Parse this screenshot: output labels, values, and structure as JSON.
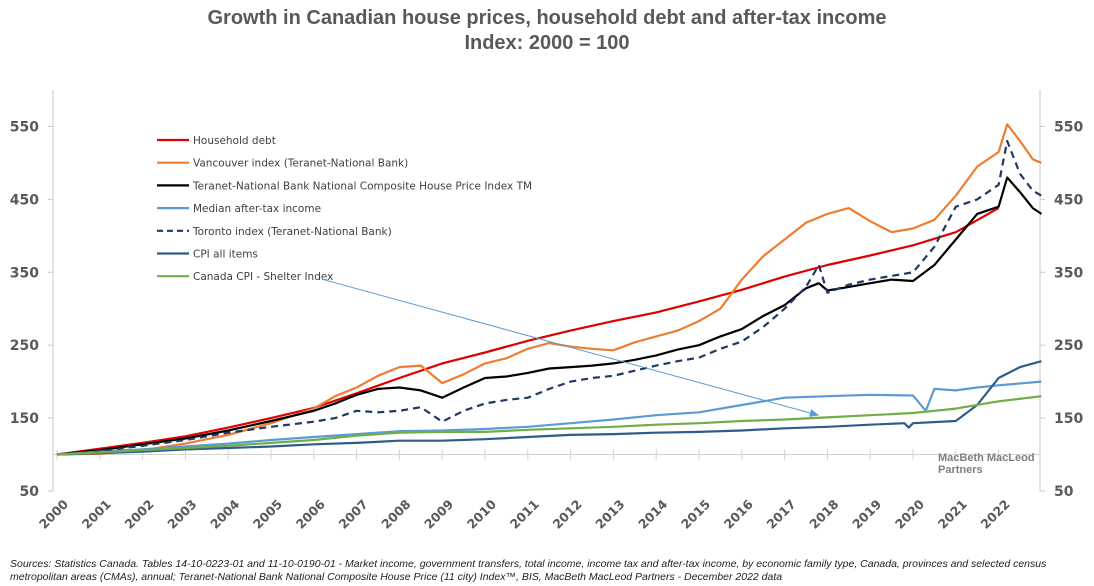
{
  "chart_data": {
    "type": "line",
    "title": "Growth in Canadian house prices, household debt and after-tax income",
    "subtitle": "Index: 2000 = 100",
    "xlabel": "",
    "ylabel": "",
    "xlim": [
      2000,
      2023
    ],
    "ylim": [
      50,
      600
    ],
    "y_ticks": [
      50,
      150,
      250,
      350,
      450,
      550
    ],
    "x_ticks": [
      "2000",
      "2001",
      "2002",
      "2003",
      "2004",
      "2005",
      "2006",
      "2007",
      "2008",
      "2009",
      "2010",
      "2011",
      "2012",
      "2013",
      "2014",
      "2015",
      "2016",
      "2017",
      "2018",
      "2019",
      "2020",
      "2021",
      "2022"
    ],
    "grid": false,
    "secondary_y_axis": true,
    "legend_position": "top-left",
    "series": [
      {
        "name": "Household debt",
        "color": "#e00000",
        "style": "solid",
        "x": [
          2000,
          2001,
          2002,
          2003,
          2004,
          2005,
          2006,
          2007,
          2008,
          2009,
          2010,
          2011,
          2012,
          2013,
          2014,
          2015,
          2016,
          2017,
          2018,
          2019,
          2020,
          2021,
          2022.0
        ],
        "values": [
          100,
          108,
          116,
          125,
          137,
          150,
          164,
          184,
          205,
          225,
          240,
          256,
          270,
          283,
          295,
          310,
          326,
          344,
          360,
          373,
          387,
          405,
          438
        ]
      },
      {
        "name": "Vancouver index (Teranet-National Bank)",
        "color": "#ed7d31",
        "style": "solid",
        "x": [
          2000,
          2001,
          2002,
          2003,
          2004,
          2005,
          2006,
          2006.5,
          2007,
          2007.5,
          2008,
          2008.5,
          2009,
          2009.5,
          2010,
          2010.5,
          2011,
          2011.5,
          2012,
          2012.5,
          2013,
          2013.5,
          2014,
          2014.5,
          2015,
          2015.5,
          2016,
          2016.5,
          2017,
          2017.5,
          2018,
          2018.5,
          2019,
          2019.5,
          2020,
          2020.5,
          2021,
          2021.5,
          2022,
          2022.2,
          2022.5,
          2022.8,
          2023
        ],
        "values": [
          100,
          101,
          106,
          115,
          127,
          143,
          163,
          180,
          192,
          208,
          220,
          222,
          198,
          210,
          225,
          232,
          245,
          253,
          248,
          245,
          243,
          254,
          262,
          270,
          283,
          300,
          340,
          372,
          395,
          418,
          430,
          438,
          420,
          405,
          410,
          422,
          455,
          495,
          515,
          553,
          530,
          505,
          500
        ]
      },
      {
        "name": "Teranet-National Bank National Composite House Price Index TM",
        "color": "#000000",
        "style": "solid",
        "x": [
          2000,
          2001,
          2002,
          2003,
          2004,
          2005,
          2006,
          2006.5,
          2007,
          2007.5,
          2008,
          2008.5,
          2009,
          2009.5,
          2010,
          2010.5,
          2011,
          2011.5,
          2012,
          2012.5,
          2013,
          2013.5,
          2014,
          2014.5,
          2015,
          2015.5,
          2016,
          2016.5,
          2017,
          2017.5,
          2017.8,
          2018,
          2018.5,
          2019,
          2019.5,
          2020,
          2020.5,
          2021,
          2021.5,
          2022,
          2022.2,
          2022.5,
          2022.8,
          2023
        ],
        "values": [
          100,
          106,
          114,
          122,
          133,
          146,
          160,
          170,
          182,
          190,
          192,
          188,
          178,
          192,
          205,
          207,
          212,
          218,
          220,
          222,
          225,
          230,
          236,
          244,
          250,
          262,
          272,
          290,
          305,
          328,
          335,
          325,
          330,
          335,
          340,
          338,
          360,
          395,
          430,
          440,
          480,
          460,
          438,
          430
        ]
      },
      {
        "name": "Median after-tax income",
        "color": "#5b9bd5",
        "style": "solid",
        "x": [
          2000,
          2001,
          2002,
          2003,
          2004,
          2005,
          2006,
          2007,
          2008,
          2009,
          2010,
          2011,
          2012,
          2013,
          2014,
          2015,
          2016,
          2017,
          2018,
          2019,
          2020,
          2020.3,
          2020.5,
          2021,
          2021.5,
          2022,
          2023
        ],
        "values": [
          100,
          104,
          107,
          111,
          115,
          120,
          124,
          128,
          132,
          133,
          135,
          138,
          143,
          148,
          154,
          158,
          168,
          178,
          180,
          182,
          181,
          160,
          190,
          188,
          192,
          195,
          200
        ]
      },
      {
        "name": "Toronto index (Teranet-National Bank)",
        "color": "#1f3864",
        "style": "dashed",
        "x": [
          2000,
          2001,
          2002,
          2003,
          2004,
          2005,
          2006,
          2006.5,
          2007,
          2007.5,
          2008,
          2008.5,
          2009,
          2009.5,
          2010,
          2010.5,
          2011,
          2011.5,
          2012,
          2012.5,
          2013,
          2013.5,
          2014,
          2014.5,
          2015,
          2015.5,
          2016,
          2016.5,
          2017,
          2017.5,
          2017.8,
          2018,
          2018.5,
          2019,
          2019.5,
          2020,
          2020.5,
          2021,
          2021.5,
          2022,
          2022.2,
          2022.5,
          2022.8,
          2023
        ],
        "values": [
          100,
          105,
          112,
          120,
          130,
          138,
          145,
          150,
          160,
          158,
          160,
          165,
          145,
          160,
          170,
          175,
          178,
          190,
          200,
          205,
          208,
          215,
          222,
          228,
          233,
          245,
          255,
          275,
          300,
          330,
          360,
          322,
          333,
          340,
          345,
          350,
          385,
          440,
          450,
          470,
          530,
          485,
          462,
          455
        ]
      },
      {
        "name": "CPI all items",
        "color": "#2e5d8a",
        "style": "solid",
        "x": [
          2000,
          2001,
          2002,
          2003,
          2004,
          2005,
          2006,
          2007,
          2008,
          2009,
          2010,
          2011,
          2012,
          2013,
          2014,
          2015,
          2016,
          2017,
          2018,
          2019,
          2019.8,
          2019.9,
          2020,
          2021,
          2021.5,
          2022,
          2022.5,
          2023
        ],
        "values": [
          100,
          102,
          104,
          107,
          109,
          111,
          114,
          116,
          119,
          119,
          121,
          124,
          127,
          128,
          130,
          131,
          133,
          136,
          138,
          141,
          143,
          137,
          143,
          146,
          168,
          205,
          220,
          228
        ]
      },
      {
        "name": "Canada CPI - Shelter Index",
        "color": "#70ad47",
        "style": "solid",
        "x": [
          2000,
          2001,
          2002,
          2003,
          2004,
          2005,
          2006,
          2007,
          2008,
          2009,
          2010,
          2011,
          2012,
          2013,
          2014,
          2015,
          2016,
          2017,
          2018,
          2019,
          2020,
          2021,
          2022,
          2023
        ],
        "values": [
          100,
          103,
          106,
          109,
          112,
          116,
          120,
          126,
          130,
          131,
          131,
          134,
          136,
          138,
          141,
          143,
          146,
          148,
          151,
          154,
          157,
          163,
          173,
          180
        ]
      }
    ],
    "annotations": [
      {
        "type": "arrow",
        "label": "Canada CPI - Shelter Index",
        "from": "legend-entry",
        "to": [
          2017.8,
          151
        ]
      }
    ],
    "watermark": [
      "MacBeth MacLeod",
      "Partners"
    ]
  },
  "source_text": "Sources: Statistics Canada. Tables 14-10-0223-01 and 11-10-0190-01 -  Market income, government transfers, total income, income tax and after-tax income, by economic family type, Canada, provinces and selected census metropolitan areas (CMAs), annual; Teranet-National Bank National Composite House Price (11 city) Index™, BIS, MacBeth MacLeod Partners - December 2022 data"
}
